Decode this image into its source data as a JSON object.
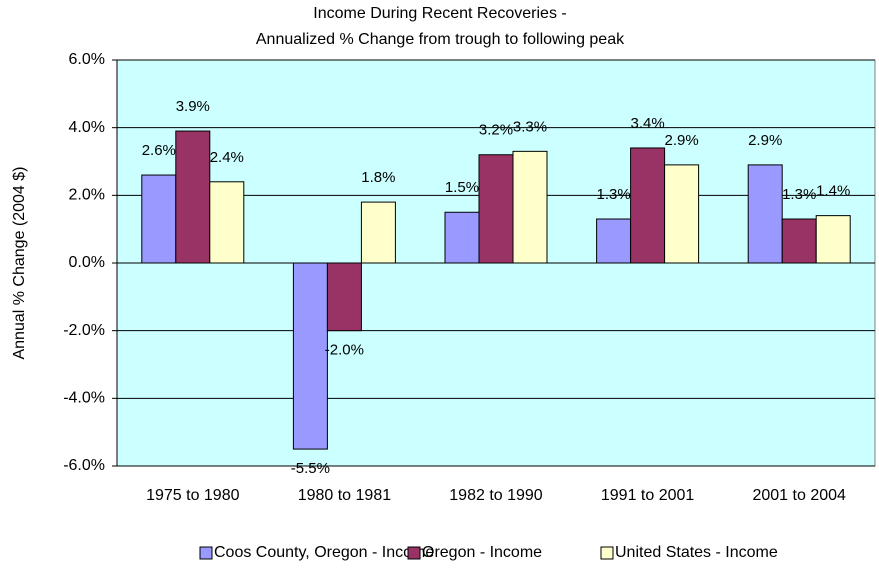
{
  "chart_data": {
    "type": "bar",
    "title": "Income During Recent Recoveries -",
    "subtitle": "Annualized % Change from trough to following peak",
    "y_label": "Annual % Change (2004 $)",
    "categories": [
      "1975 to 1980",
      "1980 to 1981",
      "1982 to 1990",
      "1991 to 2001",
      "2001 to 2004"
    ],
    "series": [
      {
        "name": "Coos County, Oregon - Income",
        "color": "#9999ff",
        "values": [
          2.6,
          -5.5,
          1.5,
          1.3,
          2.9
        ],
        "value_labels": [
          "2.6%",
          "-5.5%",
          "1.5%",
          "1.3%",
          "2.9%"
        ]
      },
      {
        "name": "Oregon - Income",
        "color": "#993366",
        "values": [
          3.9,
          -2.0,
          3.2,
          3.4,
          1.3
        ],
        "value_labels": [
          "3.9%",
          "-2.0%",
          "3.2%",
          "3.4%",
          "1.3%"
        ]
      },
      {
        "name": "United States - Income",
        "color": "#ffffcc",
        "values": [
          2.4,
          1.8,
          3.3,
          2.9,
          1.4
        ],
        "value_labels": [
          "2.4%",
          "1.8%",
          "3.3%",
          "2.9%",
          "1.4%"
        ]
      }
    ],
    "ylim": [
      -6,
      6
    ],
    "yticks": [
      {
        "value": -6,
        "label": "-6.0%"
      },
      {
        "value": -4,
        "label": "-4.0%"
      },
      {
        "value": -2,
        "label": "-2.0%"
      },
      {
        "value": 0,
        "label": "0.0%"
      },
      {
        "value": 2,
        "label": "2.0%"
      },
      {
        "value": 4,
        "label": "4.0%"
      },
      {
        "value": 6,
        "label": "6.0%"
      }
    ],
    "grid": true,
    "plot_background": "#ccffff",
    "legend": "bottom"
  }
}
